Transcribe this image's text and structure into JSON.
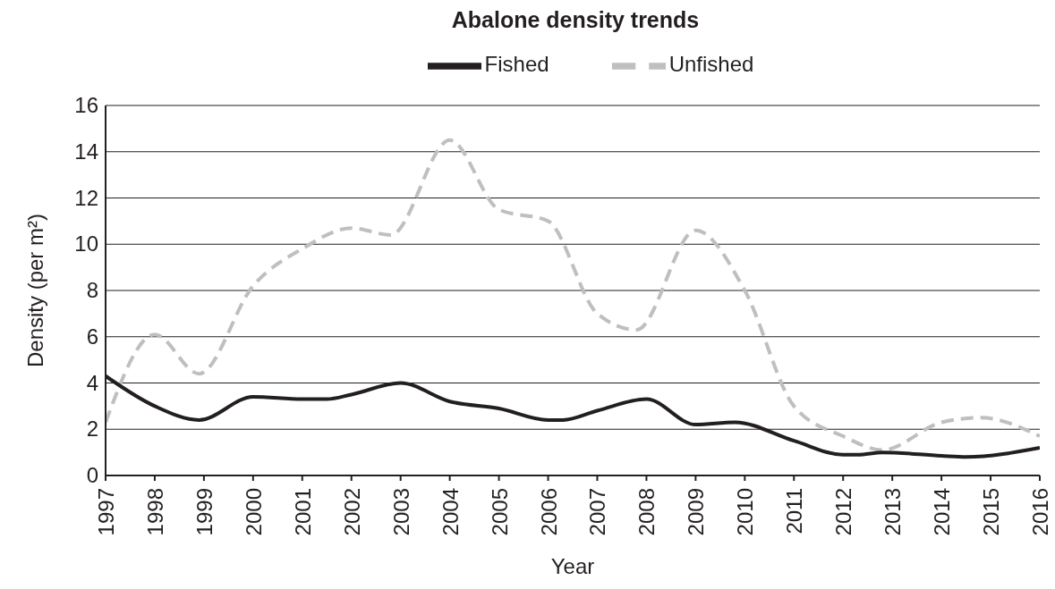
{
  "chart_data": {
    "type": "line",
    "title": "Abalone density trends",
    "xlabel": "Year",
    "ylabel": "Density (per m²)",
    "xlim": [
      1997,
      2016
    ],
    "xticks": [
      1997,
      1998,
      1999,
      2000,
      2001,
      2002,
      2003,
      2004,
      2005,
      2006,
      2007,
      2008,
      2009,
      2010,
      2011,
      2012,
      2013,
      2014,
      2015,
      2016
    ],
    "ylim": [
      0,
      16
    ],
    "yticks": [
      0,
      2,
      4,
      6,
      8,
      10,
      12,
      14,
      16
    ],
    "grid": "y",
    "legend": "top",
    "series": [
      {
        "name": "Unfished",
        "color": "#bfbfbf",
        "line_style": "dashed",
        "x": [
          1997,
          1998,
          1998.9,
          2000,
          2001,
          2002,
          2002.8,
          2004,
          2005,
          2006,
          2007,
          2007.8,
          2009,
          2010,
          2011,
          2012,
          2012.8,
          2014,
          2014.8,
          2016
        ],
        "values": [
          2.3,
          6.1,
          4.4,
          8.2,
          9.8,
          10.7,
          10.4,
          14.5,
          11.5,
          11.0,
          7.0,
          6.3,
          10.6,
          8.0,
          3.0,
          1.7,
          1.1,
          2.3,
          2.5,
          1.7
        ]
      },
      {
        "name": "Fished",
        "color": "#231f20",
        "line_style": "solid",
        "x": [
          1997,
          1998,
          1998.9,
          2000,
          2001,
          2001.5,
          2002,
          2003,
          2004,
          2005,
          2006,
          2006.3,
          2007,
          2008,
          2009,
          2009.8,
          2011,
          2012,
          2012.3,
          2012.8,
          2014,
          2014.5,
          2016
        ],
        "values": [
          4.3,
          3.0,
          2.4,
          3.4,
          3.3,
          3.3,
          3.5,
          4.0,
          3.2,
          2.9,
          2.4,
          2.4,
          2.8,
          3.3,
          2.2,
          2.3,
          1.5,
          0.9,
          0.9,
          1.0,
          0.85,
          0.8,
          1.2
        ]
      }
    ]
  }
}
